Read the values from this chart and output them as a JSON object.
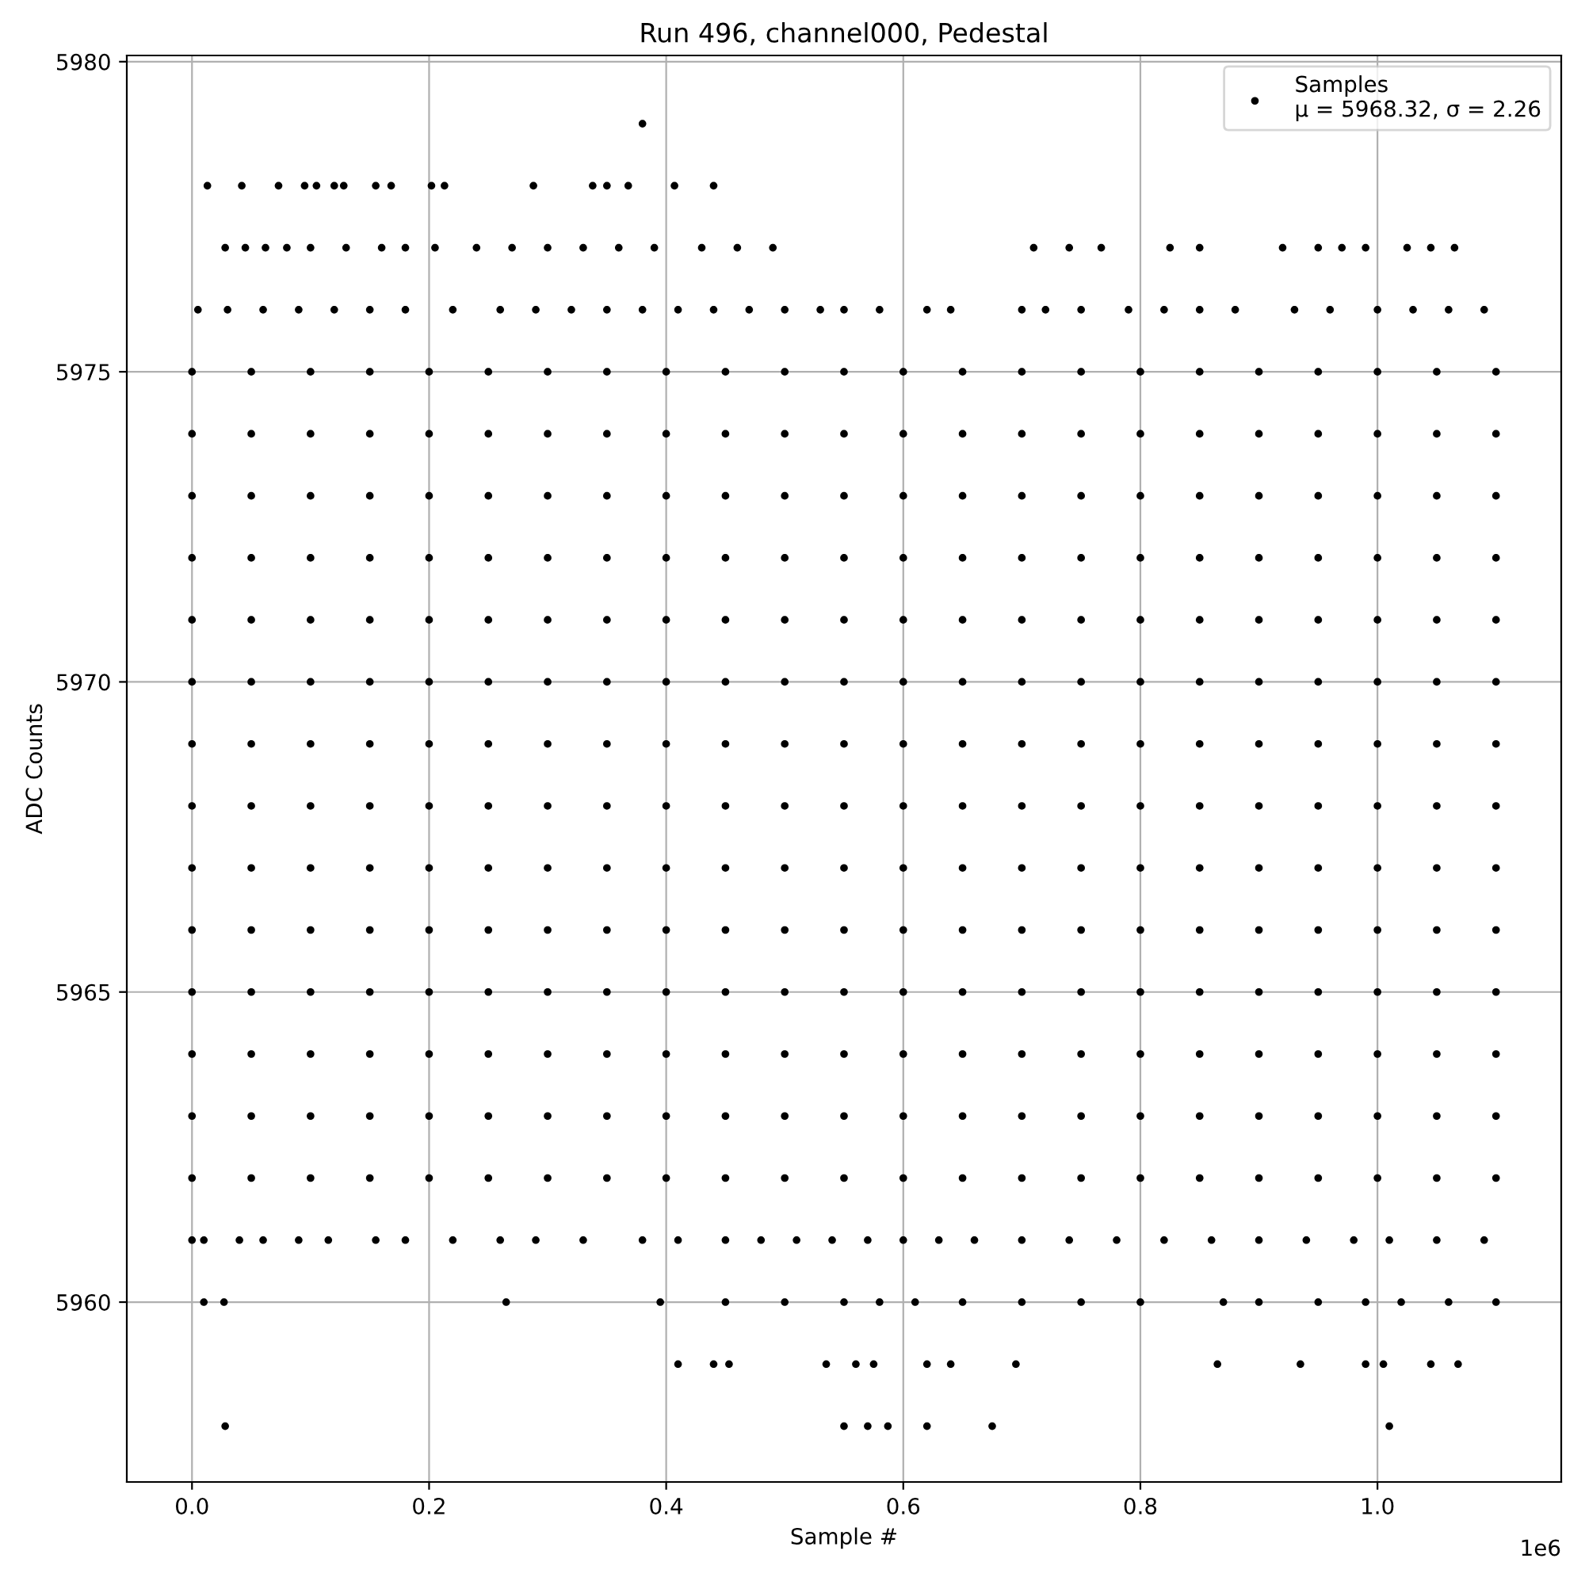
{
  "chart_data": {
    "type": "scatter",
    "title": "Run 496, channel000, Pedestal",
    "xlabel": "Sample #",
    "ylabel": "ADC Counts",
    "annotations": [
      "1e6"
    ],
    "xlim": [
      -0.055,
      1.155
    ],
    "xticks": [
      {
        "value": 0,
        "label": "0.0"
      },
      0.2,
      0.4,
      0.6,
      0.8,
      {
        "value": 1,
        "label": "1.0"
      }
    ],
    "ylim": [
      5957.1,
      5980.1
    ],
    "yticks": [
      5960,
      5965,
      5970,
      5975,
      5980
    ],
    "grid": true,
    "legend": "top right",
    "marker": "circle",
    "series": [
      {
        "name": "Samples\nμ = 5968.32, σ = 2.26",
        "color": "#000000",
        "x": [
          0,
          0.05,
          0.1,
          0.15,
          0.2,
          0.25,
          0.3,
          0.35,
          0.4,
          0.45,
          0.5,
          0.55,
          0.6,
          0.65,
          0.7,
          0.75,
          0.8,
          0.85,
          0.9,
          0.95,
          1.0,
          1.05,
          1.1
        ],
        "values": [
          5970,
          5970,
          5970,
          5970,
          5970,
          5970,
          5970,
          5970,
          5970,
          5970,
          5970,
          5970,
          5970,
          5970,
          5970,
          5970,
          5970,
          5970,
          5970,
          5970,
          5970,
          5970,
          5970
        ]
      },
      {
        "color": "#000000",
        "x": [
          0,
          0.05,
          0.1,
          0.15,
          0.2,
          0.25,
          0.3,
          0.35,
          0.4,
          0.45,
          0.5,
          0.55,
          0.6,
          0.65,
          0.7,
          0.75,
          0.8,
          0.85,
          0.9,
          0.95,
          1.0,
          1.05,
          1.1
        ],
        "values": [
          5962,
          5962,
          5962,
          5962,
          5962,
          5962,
          5962,
          5962,
          5962,
          5962,
          5962,
          5962,
          5962,
          5962,
          5962,
          5962,
          5962,
          5962,
          5962,
          5962,
          5962,
          5962,
          5962
        ]
      },
      {
        "color": "#000000",
        "x": [
          0,
          0.05,
          0.1,
          0.15,
          0.2,
          0.25,
          0.3,
          0.35,
          0.4,
          0.45,
          0.5,
          0.55,
          0.6,
          0.65,
          0.7,
          0.75,
          0.8,
          0.85,
          0.9,
          0.95,
          1.0,
          1.05,
          1.1
        ],
        "values": [
          5963,
          5963,
          5963,
          5963,
          5963,
          5963,
          5963,
          5963,
          5963,
          5963,
          5963,
          5963,
          5963,
          5963,
          5963,
          5963,
          5963,
          5963,
          5963,
          5963,
          5963,
          5963,
          5963
        ]
      },
      {
        "color": "#000000",
        "x": [
          0,
          0.05,
          0.1,
          0.15,
          0.2,
          0.25,
          0.3,
          0.35,
          0.4,
          0.45,
          0.5,
          0.55,
          0.6,
          0.65,
          0.7,
          0.75,
          0.8,
          0.85,
          0.9,
          0.95,
          1.0,
          1.05,
          1.1
        ],
        "values": [
          5964,
          5964,
          5964,
          5964,
          5964,
          5964,
          5964,
          5964,
          5964,
          5964,
          5964,
          5964,
          5964,
          5964,
          5964,
          5964,
          5964,
          5964,
          5964,
          5964,
          5964,
          5964,
          5964
        ]
      },
      {
        "color": "#000000",
        "x": [
          0,
          0.05,
          0.1,
          0.15,
          0.2,
          0.25,
          0.3,
          0.35,
          0.4,
          0.45,
          0.5,
          0.55,
          0.6,
          0.65,
          0.7,
          0.75,
          0.8,
          0.85,
          0.9,
          0.95,
          1.0,
          1.05,
          1.1
        ],
        "values": [
          5965,
          5965,
          5965,
          5965,
          5965,
          5965,
          5965,
          5965,
          5965,
          5965,
          5965,
          5965,
          5965,
          5965,
          5965,
          5965,
          5965,
          5965,
          5965,
          5965,
          5965,
          5965,
          5965
        ]
      },
      {
        "color": "#000000",
        "x": [
          0,
          0.05,
          0.1,
          0.15,
          0.2,
          0.25,
          0.3,
          0.35,
          0.4,
          0.45,
          0.5,
          0.55,
          0.6,
          0.65,
          0.7,
          0.75,
          0.8,
          0.85,
          0.9,
          0.95,
          1.0,
          1.05,
          1.1
        ],
        "values": [
          5966,
          5966,
          5966,
          5966,
          5966,
          5966,
          5966,
          5966,
          5966,
          5966,
          5966,
          5966,
          5966,
          5966,
          5966,
          5966,
          5966,
          5966,
          5966,
          5966,
          5966,
          5966,
          5966
        ]
      },
      {
        "color": "#000000",
        "x": [
          0,
          0.05,
          0.1,
          0.15,
          0.2,
          0.25,
          0.3,
          0.35,
          0.4,
          0.45,
          0.5,
          0.55,
          0.6,
          0.65,
          0.7,
          0.75,
          0.8,
          0.85,
          0.9,
          0.95,
          1.0,
          1.05,
          1.1
        ],
        "values": [
          5967,
          5967,
          5967,
          5967,
          5967,
          5967,
          5967,
          5967,
          5967,
          5967,
          5967,
          5967,
          5967,
          5967,
          5967,
          5967,
          5967,
          5967,
          5967,
          5967,
          5967,
          5967,
          5967
        ]
      },
      {
        "color": "#000000",
        "x": [
          0,
          0.05,
          0.1,
          0.15,
          0.2,
          0.25,
          0.3,
          0.35,
          0.4,
          0.45,
          0.5,
          0.55,
          0.6,
          0.65,
          0.7,
          0.75,
          0.8,
          0.85,
          0.9,
          0.95,
          1.0,
          1.05,
          1.1
        ],
        "values": [
          5968,
          5968,
          5968,
          5968,
          5968,
          5968,
          5968,
          5968,
          5968,
          5968,
          5968,
          5968,
          5968,
          5968,
          5968,
          5968,
          5968,
          5968,
          5968,
          5968,
          5968,
          5968,
          5968
        ]
      },
      {
        "color": "#000000",
        "x": [
          0,
          0.05,
          0.1,
          0.15,
          0.2,
          0.25,
          0.3,
          0.35,
          0.4,
          0.45,
          0.5,
          0.55,
          0.6,
          0.65,
          0.7,
          0.75,
          0.8,
          0.85,
          0.9,
          0.95,
          1.0,
          1.05,
          1.1
        ],
        "values": [
          5969,
          5969,
          5969,
          5969,
          5969,
          5969,
          5969,
          5969,
          5969,
          5969,
          5969,
          5969,
          5969,
          5969,
          5969,
          5969,
          5969,
          5969,
          5969,
          5969,
          5969,
          5969,
          5969
        ]
      },
      {
        "color": "#000000",
        "x": [
          0,
          0.05,
          0.1,
          0.15,
          0.2,
          0.25,
          0.3,
          0.35,
          0.4,
          0.45,
          0.5,
          0.55,
          0.6,
          0.65,
          0.7,
          0.75,
          0.8,
          0.85,
          0.9,
          0.95,
          1.0,
          1.05,
          1.1
        ],
        "values": [
          5971,
          5971,
          5971,
          5971,
          5971,
          5971,
          5971,
          5971,
          5971,
          5971,
          5971,
          5971,
          5971,
          5971,
          5971,
          5971,
          5971,
          5971,
          5971,
          5971,
          5971,
          5971,
          5971
        ]
      },
      {
        "color": "#000000",
        "x": [
          0,
          0.05,
          0.1,
          0.15,
          0.2,
          0.25,
          0.3,
          0.35,
          0.4,
          0.45,
          0.5,
          0.55,
          0.6,
          0.65,
          0.7,
          0.75,
          0.8,
          0.85,
          0.9,
          0.95,
          1.0,
          1.05,
          1.1
        ],
        "values": [
          5972,
          5972,
          5972,
          5972,
          5972,
          5972,
          5972,
          5972,
          5972,
          5972,
          5972,
          5972,
          5972,
          5972,
          5972,
          5972,
          5972,
          5972,
          5972,
          5972,
          5972,
          5972,
          5972
        ]
      },
      {
        "color": "#000000",
        "x": [
          0,
          0.05,
          0.1,
          0.15,
          0.2,
          0.25,
          0.3,
          0.35,
          0.4,
          0.45,
          0.5,
          0.55,
          0.6,
          0.65,
          0.7,
          0.75,
          0.8,
          0.85,
          0.9,
          0.95,
          1.0,
          1.05,
          1.1
        ],
        "values": [
          5973,
          5973,
          5973,
          5973,
          5973,
          5973,
          5973,
          5973,
          5973,
          5973,
          5973,
          5973,
          5973,
          5973,
          5973,
          5973,
          5973,
          5973,
          5973,
          5973,
          5973,
          5973,
          5973
        ]
      },
      {
        "color": "#000000",
        "x": [
          0,
          0.05,
          0.1,
          0.15,
          0.2,
          0.25,
          0.3,
          0.35,
          0.4,
          0.45,
          0.5,
          0.55,
          0.6,
          0.65,
          0.7,
          0.75,
          0.8,
          0.85,
          0.9,
          0.95,
          1.0,
          1.05,
          1.1
        ],
        "values": [
          5974,
          5974,
          5974,
          5974,
          5974,
          5974,
          5974,
          5974,
          5974,
          5974,
          5974,
          5974,
          5974,
          5974,
          5974,
          5974,
          5974,
          5974,
          5974,
          5974,
          5974,
          5974,
          5974
        ]
      },
      {
        "color": "#000000",
        "x": [
          0,
          0.05,
          0.1,
          0.15,
          0.2,
          0.25,
          0.3,
          0.35,
          0.4,
          0.45,
          0.5,
          0.55,
          0.6,
          0.65,
          0.7,
          0.75,
          0.8,
          0.85,
          0.9,
          0.95,
          1.0,
          1.05,
          1.1
        ],
        "values": [
          5975,
          5975,
          5975,
          5975,
          5975,
          5975,
          5975,
          5975,
          5975,
          5975,
          5975,
          5975,
          5975,
          5975,
          5975,
          5975,
          5975,
          5975,
          5975,
          5975,
          5975,
          5975,
          5975
        ]
      },
      {
        "color": "#000000",
        "x": [
          0.005,
          0.03,
          0.06,
          0.09,
          0.12,
          0.15,
          0.18,
          0.22,
          0.26,
          0.29,
          0.32,
          0.35,
          0.38,
          0.41,
          0.44,
          0.47,
          0.5,
          0.53,
          0.55,
          0.58,
          0.62,
          0.64,
          0.7,
          0.72,
          0.75,
          0.79,
          0.82,
          0.85,
          0.88,
          0.93,
          0.96,
          1.0,
          1.03,
          1.06,
          1.09
        ],
        "values": [
          5976,
          5976,
          5976,
          5976,
          5976,
          5976,
          5976,
          5976,
          5976,
          5976,
          5976,
          5976,
          5976,
          5976,
          5976,
          5976,
          5976,
          5976,
          5976,
          5976,
          5976,
          5976,
          5976,
          5976,
          5976,
          5976,
          5976,
          5976,
          5976,
          5976,
          5976,
          5976,
          5976,
          5976,
          5976
        ]
      },
      {
        "color": "#000000",
        "x": [
          0.028,
          0.045,
          0.062,
          0.08,
          0.1,
          0.13,
          0.16,
          0.18,
          0.205,
          0.24,
          0.27,
          0.3,
          0.33,
          0.36,
          0.39,
          0.43,
          0.46,
          0.49,
          0.71,
          0.74,
          0.767,
          0.825,
          0.85,
          0.92,
          0.95,
          0.97,
          0.99,
          1.025,
          1.045,
          1.065
        ],
        "values": [
          5977,
          5977,
          5977,
          5977,
          5977,
          5977,
          5977,
          5977,
          5977,
          5977,
          5977,
          5977,
          5977,
          5977,
          5977,
          5977,
          5977,
          5977,
          5977,
          5977,
          5977,
          5977,
          5977,
          5977,
          5977,
          5977,
          5977,
          5977,
          5977,
          5977
        ]
      },
      {
        "color": "#000000",
        "x": [
          0.013,
          0.042,
          0.073,
          0.095,
          0.105,
          0.12,
          0.128,
          0.155,
          0.168,
          0.202,
          0.213,
          0.288,
          0.338,
          0.35,
          0.368,
          0.407,
          0.44
        ],
        "values": [
          5978,
          5978,
          5978,
          5978,
          5978,
          5978,
          5978,
          5978,
          5978,
          5978,
          5978,
          5978,
          5978,
          5978,
          5978,
          5978,
          5978
        ]
      },
      {
        "color": "#000000",
        "x": [
          0.38
        ],
        "values": [
          5979
        ]
      },
      {
        "color": "#000000",
        "x": [
          0,
          0.01,
          0.04,
          0.06,
          0.09,
          0.115,
          0.155,
          0.18,
          0.22,
          0.26,
          0.29,
          0.33,
          0.38,
          0.41,
          0.45,
          0.48,
          0.51,
          0.54,
          0.57,
          0.6,
          0.63,
          0.66,
          0.7,
          0.74,
          0.78,
          0.82,
          0.86,
          0.9,
          0.94,
          0.98,
          1.01,
          1.05,
          1.09
        ],
        "values": [
          5961,
          5961,
          5961,
          5961,
          5961,
          5961,
          5961,
          5961,
          5961,
          5961,
          5961,
          5961,
          5961,
          5961,
          5961,
          5961,
          5961,
          5961,
          5961,
          5961,
          5961,
          5961,
          5961,
          5961,
          5961,
          5961,
          5961,
          5961,
          5961,
          5961,
          5961,
          5961,
          5961
        ]
      },
      {
        "color": "#000000",
        "x": [
          0.01,
          0.027,
          0.265,
          0.395,
          0.45,
          0.5,
          0.55,
          0.58,
          0.61,
          0.65,
          0.7,
          0.75,
          0.8,
          0.87,
          0.9,
          0.95,
          0.99,
          1.02,
          1.06,
          1.1
        ],
        "values": [
          5960,
          5960,
          5960,
          5960,
          5960,
          5960,
          5960,
          5960,
          5960,
          5960,
          5960,
          5960,
          5960,
          5960,
          5960,
          5960,
          5960,
          5960,
          5960,
          5960
        ]
      },
      {
        "color": "#000000",
        "x": [
          0.41,
          0.44,
          0.453,
          0.535,
          0.56,
          0.575,
          0.62,
          0.64,
          0.695,
          0.865,
          0.935,
          0.99,
          1.005,
          1.045,
          1.068
        ],
        "values": [
          5959,
          5959,
          5959,
          5959,
          5959,
          5959,
          5959,
          5959,
          5959,
          5959,
          5959,
          5959,
          5959,
          5959,
          5959
        ]
      },
      {
        "color": "#000000",
        "x": [
          0.028,
          0.55,
          0.57,
          0.587,
          0.62,
          0.675,
          1.01
        ],
        "values": [
          5958,
          5958,
          5958,
          5958,
          5958,
          5958,
          5958
        ]
      }
    ]
  }
}
